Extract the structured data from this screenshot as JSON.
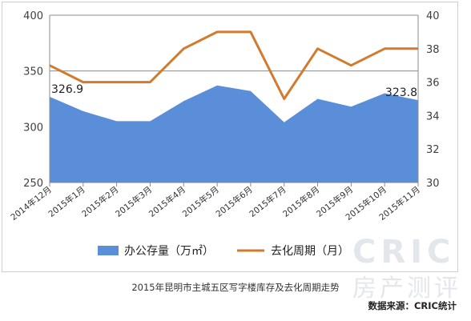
{
  "chart_data": {
    "type": "area+line",
    "categories": [
      "2014年12月",
      "2015年1月",
      "2015年2月",
      "2015年3月",
      "2015年4月",
      "2015年5月",
      "2015年6月",
      "2015年7月",
      "2015年8月",
      "2015年9月",
      "2015年10月",
      "2015年11月"
    ],
    "series": [
      {
        "name": "办公存量（万㎡）",
        "type": "area",
        "axis": "left",
        "color": "#5b8ed8",
        "values": [
          326.9,
          314,
          305,
          305,
          323,
          337,
          332,
          304,
          325,
          318,
          330,
          323.8
        ]
      },
      {
        "name": "去化周期（月）",
        "type": "line",
        "axis": "right",
        "color": "#d27a2e",
        "values": [
          37,
          36,
          36,
          36,
          38,
          39,
          39,
          35,
          38,
          37,
          38,
          38
        ]
      }
    ],
    "y_left": {
      "min": 250,
      "max": 400,
      "ticks": [
        250,
        300,
        350,
        400
      ]
    },
    "y_right": {
      "min": 30,
      "max": 40,
      "ticks": [
        30,
        32,
        34,
        36,
        38,
        40
      ]
    },
    "data_labels": [
      {
        "series": 0,
        "index": 0,
        "text": "326.9"
      },
      {
        "series": 0,
        "index": 11,
        "text": "323.8"
      }
    ],
    "grid": "horizontal",
    "legend_position": "bottom",
    "title": "2015年昆明市主城五区写字楼库存及去化周期走势",
    "source": "数据来源：CRIC统计"
  },
  "watermark": {
    "line1": "CRIC",
    "line2": "房产测评"
  }
}
